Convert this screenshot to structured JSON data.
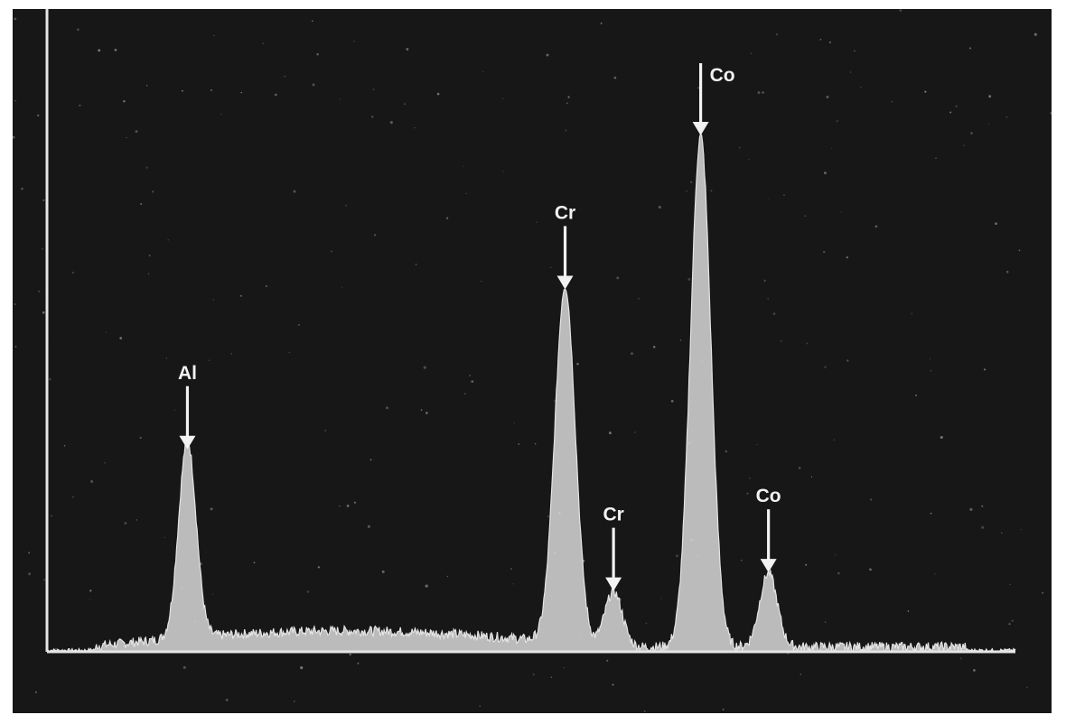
{
  "chart_data": {
    "type": "line",
    "title": "",
    "xlabel": "",
    "ylabel": "",
    "grid": false,
    "legend": "none",
    "colors": {
      "background": "#171717",
      "signal": "#d8d8d8",
      "axes": "#e6e6e6",
      "labels": "#f2f2f2"
    },
    "xlim": [
      0,
      100
    ],
    "ylim": [
      0,
      100
    ],
    "peaks": [
      {
        "element": "Al",
        "x": 14.5,
        "height": 32
      },
      {
        "element": "Cr",
        "x": 53.5,
        "height": 58
      },
      {
        "element": "Cr",
        "x": 58.5,
        "height": 9
      },
      {
        "element": "Co",
        "x": 67.5,
        "height": 83
      },
      {
        "element": "Co",
        "x": 74.5,
        "height": 12
      }
    ]
  }
}
